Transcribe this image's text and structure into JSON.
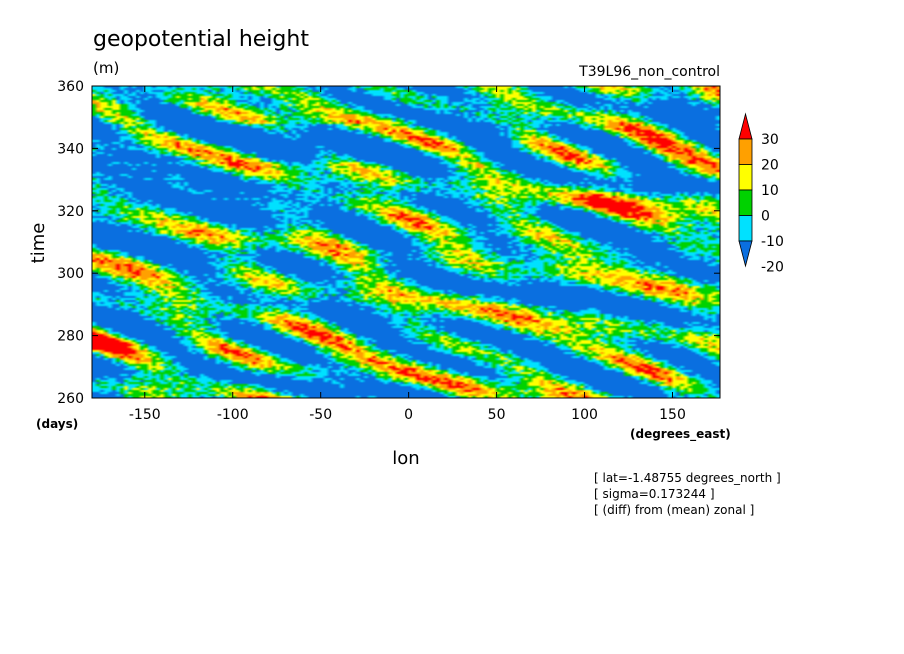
{
  "chart_data": {
    "type": "heatmap",
    "title": "geopotential height",
    "units": "(m)",
    "subtitle": "T39L96_non_control",
    "xlabel": "lon",
    "ylabel": "time",
    "x_units": "(degrees_east)",
    "y_units": "(days)",
    "xlim": [
      -180,
      177
    ],
    "ylim": [
      260,
      360
    ],
    "x_ticks": [
      "-150",
      "-100",
      "-50",
      "0",
      "50",
      "100",
      "150"
    ],
    "x_tick_values": [
      -150,
      -100,
      -50,
      0,
      50,
      100,
      150
    ],
    "y_ticks": [
      "260",
      "280",
      "300",
      "320",
      "340",
      "360"
    ],
    "y_tick_values": [
      260,
      280,
      300,
      320,
      340,
      360
    ],
    "colorbar": {
      "labels": [
        "30",
        "20",
        "10",
        "0",
        "-10",
        "-20"
      ],
      "levels": [
        -20,
        -10,
        0,
        10,
        20,
        30
      ],
      "colors": [
        "#0a6fe0",
        "#00e1ff",
        "#00d200",
        "#ffff00",
        "#ffa000",
        "#ff0000"
      ],
      "extend": "both"
    },
    "notes": [
      "[ lat=-1.48755 degrees_north ]",
      "[ sigma=0.173244 ]",
      "[ (diff) from (mean) zonal ]"
    ]
  }
}
